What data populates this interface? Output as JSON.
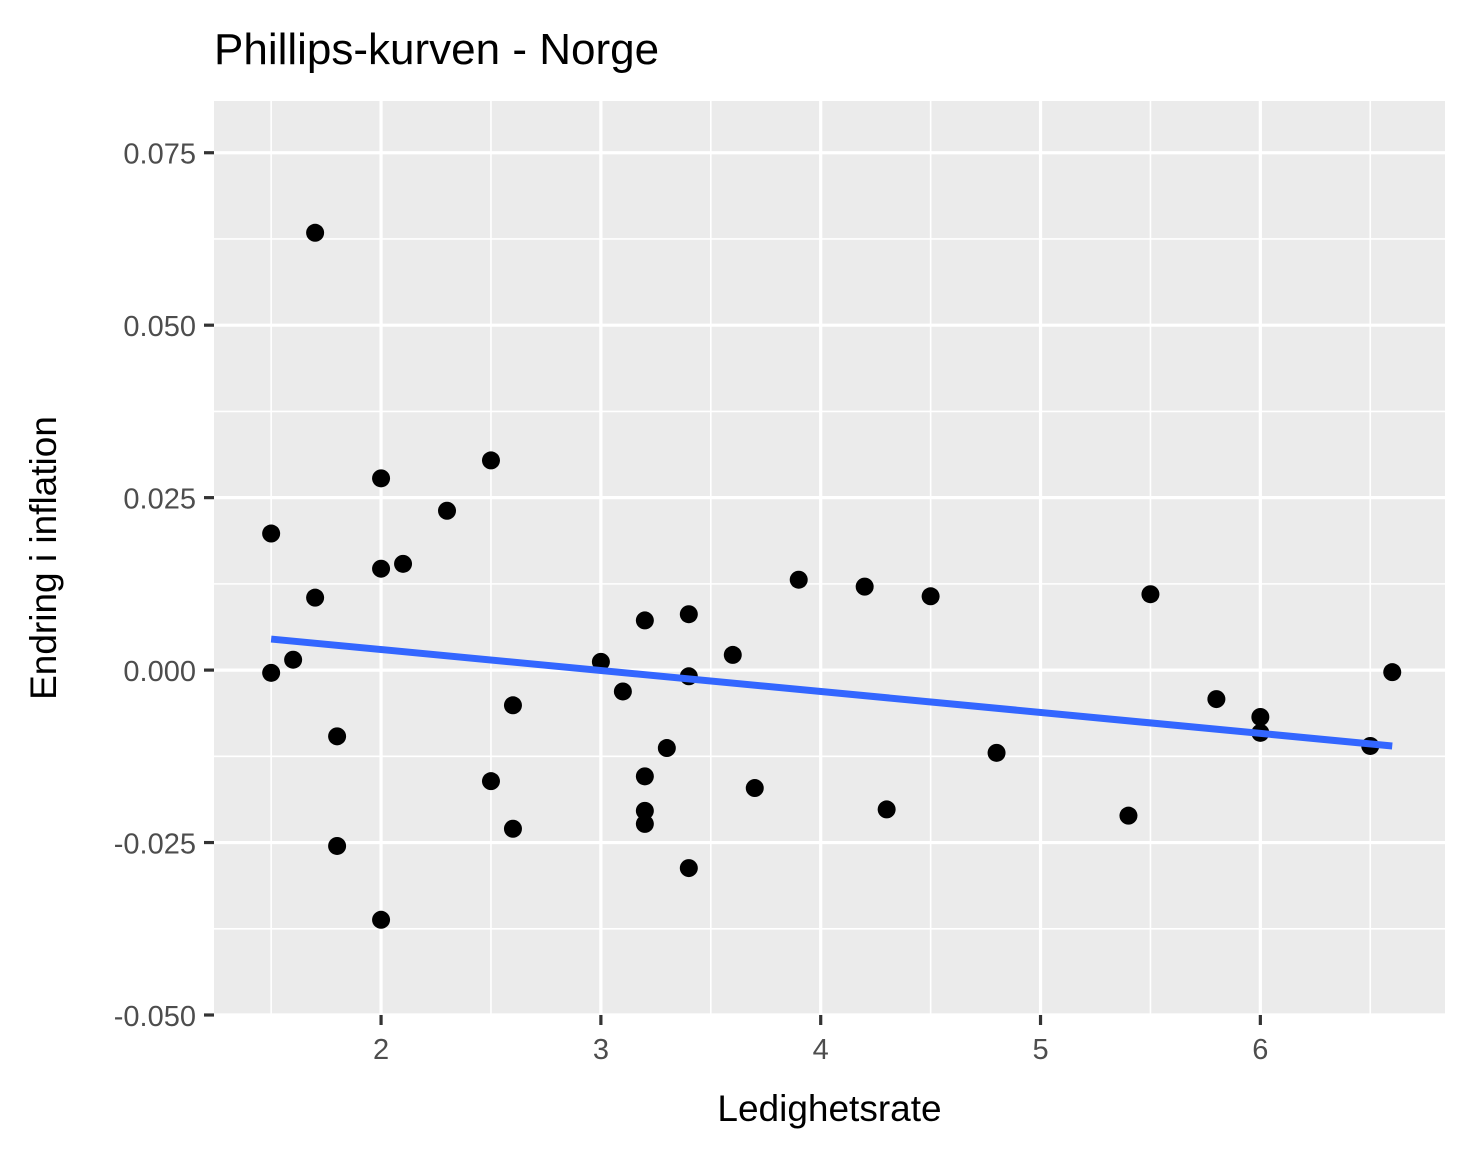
{
  "chart_data": {
    "type": "scatter",
    "title": "Phillips-kurven - Norge",
    "xlabel": "Ledighetsrate",
    "ylabel": "Endring i inflation",
    "xlim": [
      1.24,
      6.84
    ],
    "ylim": [
      -0.05,
      0.0825
    ],
    "x_ticks": [
      2,
      3,
      4,
      5,
      6
    ],
    "x_tick_labels": [
      "2",
      "3",
      "4",
      "5",
      "6"
    ],
    "x_minor_ticks": [
      1.5,
      2.5,
      3.5,
      4.5,
      5.5,
      6.5
    ],
    "y_ticks": [
      -0.05,
      -0.025,
      0.0,
      0.025,
      0.05,
      0.075
    ],
    "y_tick_labels": [
      "-0.050",
      "-0.025",
      "0.000",
      "0.025",
      "0.050",
      "0.075"
    ],
    "y_minor_ticks": [
      -0.0375,
      -0.0125,
      0.0125,
      0.0375,
      0.0625
    ],
    "grid": true,
    "legend": "none",
    "colors": {
      "panel_background": "#EBEBEB",
      "grid": "#FFFFFF",
      "point": "#000000",
      "fit_line": "#3366FF",
      "tick_text": "#4D4D4D",
      "axis_title": "#000000"
    },
    "points": [
      {
        "x": 1.5,
        "y": 0.0198
      },
      {
        "x": 1.5,
        "y": -0.0004
      },
      {
        "x": 1.6,
        "y": 0.0015
      },
      {
        "x": 1.7,
        "y": 0.0634
      },
      {
        "x": 1.7,
        "y": 0.0105
      },
      {
        "x": 1.8,
        "y": -0.0096
      },
      {
        "x": 1.8,
        "y": -0.0255
      },
      {
        "x": 2.0,
        "y": 0.0278
      },
      {
        "x": 2.0,
        "y": 0.0147
      },
      {
        "x": 2.0,
        "y": -0.0362
      },
      {
        "x": 2.1,
        "y": 0.0154
      },
      {
        "x": 2.3,
        "y": 0.0231
      },
      {
        "x": 2.5,
        "y": 0.0304
      },
      {
        "x": 2.5,
        "y": -0.0161
      },
      {
        "x": 2.6,
        "y": -0.0051
      },
      {
        "x": 2.6,
        "y": -0.023
      },
      {
        "x": 3.0,
        "y": 0.0012
      },
      {
        "x": 3.1,
        "y": -0.0031
      },
      {
        "x": 3.2,
        "y": 0.0072
      },
      {
        "x": 3.2,
        "y": -0.0154
      },
      {
        "x": 3.2,
        "y": -0.0204
      },
      {
        "x": 3.2,
        "y": -0.0223
      },
      {
        "x": 3.3,
        "y": -0.0113
      },
      {
        "x": 3.4,
        "y": 0.0081
      },
      {
        "x": 3.4,
        "y": -0.0009
      },
      {
        "x": 3.4,
        "y": -0.0287
      },
      {
        "x": 3.6,
        "y": 0.0022
      },
      {
        "x": 3.7,
        "y": -0.0171
      },
      {
        "x": 3.9,
        "y": 0.0131
      },
      {
        "x": 4.2,
        "y": 0.0121
      },
      {
        "x": 4.3,
        "y": -0.0202
      },
      {
        "x": 4.5,
        "y": 0.0107
      },
      {
        "x": 4.8,
        "y": -0.012
      },
      {
        "x": 5.4,
        "y": -0.0211
      },
      {
        "x": 5.5,
        "y": 0.011
      },
      {
        "x": 5.8,
        "y": -0.0042
      },
      {
        "x": 6.0,
        "y": -0.0068
      },
      {
        "x": 6.0,
        "y": -0.0091
      },
      {
        "x": 6.5,
        "y": -0.011
      },
      {
        "x": 6.6,
        "y": -0.0003
      }
    ],
    "fit_line": {
      "method": "lm",
      "x": [
        1.5,
        6.6
      ],
      "y": [
        0.0045,
        -0.011
      ]
    }
  }
}
